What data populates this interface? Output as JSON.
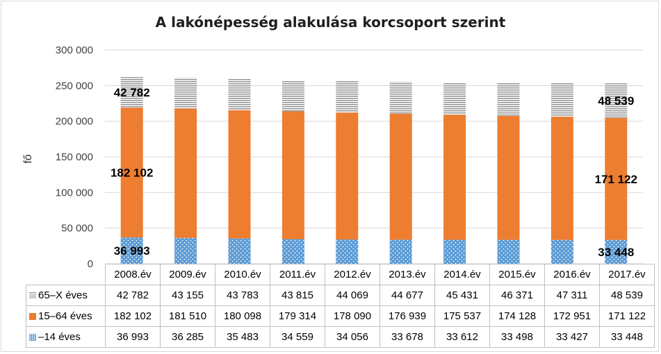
{
  "chart_data": {
    "type": "bar",
    "stacked": true,
    "title": "A lakónépesség alakulása korcsoport szerint",
    "xlabel": "",
    "ylabel": "fő",
    "ylim": [
      0,
      300000
    ],
    "yticks": [
      0,
      50000,
      100000,
      150000,
      200000,
      250000,
      300000
    ],
    "ytick_labels": [
      "0",
      "50 000",
      "100 000",
      "150 000",
      "200 000",
      "250 000",
      "300 000"
    ],
    "grid": true,
    "categories": [
      "2008.év",
      "2009.év",
      "2010.év",
      "2011.év",
      "2012.év",
      "2013.év",
      "2014.év",
      "2015.év",
      "2016.év",
      "2017.év"
    ],
    "series": [
      {
        "name": "–14 éves",
        "pattern": "dotted",
        "color": "#5b9bd5",
        "values": [
          36993,
          36285,
          35483,
          34559,
          34056,
          33678,
          33612,
          33498,
          33427,
          33448
        ],
        "labels": [
          "36 993",
          "36 285",
          "35 483",
          "34 559",
          "34 056",
          "33 678",
          "33 612",
          "33 498",
          "33 427",
          "33 448"
        ]
      },
      {
        "name": "15–64 éves",
        "pattern": "solid",
        "color": "#ed7d31",
        "values": [
          182102,
          181510,
          180098,
          179314,
          178090,
          176939,
          175537,
          174128,
          172951,
          171122
        ],
        "labels": [
          "182 102",
          "181 510",
          "180 098",
          "179 314",
          "178 090",
          "176 939",
          "175 537",
          "174 128",
          "172 951",
          "171 122"
        ]
      },
      {
        "name": "65–X éves",
        "pattern": "horizontal-stripes",
        "color": "#a6a6a6",
        "values": [
          42782,
          43155,
          43783,
          43815,
          44069,
          44677,
          45431,
          46371,
          47311,
          48539
        ],
        "labels": [
          "42 782",
          "43 155",
          "43 783",
          "43 815",
          "44 069",
          "44 677",
          "45 431",
          "46 371",
          "47 311",
          "48 539"
        ]
      }
    ],
    "data_labels": [
      {
        "series": 2,
        "category": 0,
        "text": "42 782"
      },
      {
        "series": 1,
        "category": 0,
        "text": "182 102"
      },
      {
        "series": 0,
        "category": 0,
        "text": "36 993"
      },
      {
        "series": 2,
        "category": 9,
        "text": "48 539"
      },
      {
        "series": 1,
        "category": 9,
        "text": "171 122"
      },
      {
        "series": 0,
        "category": 9,
        "text": "33 448"
      }
    ],
    "data_table": true,
    "data_table_row_order": [
      2,
      1,
      0
    ]
  }
}
